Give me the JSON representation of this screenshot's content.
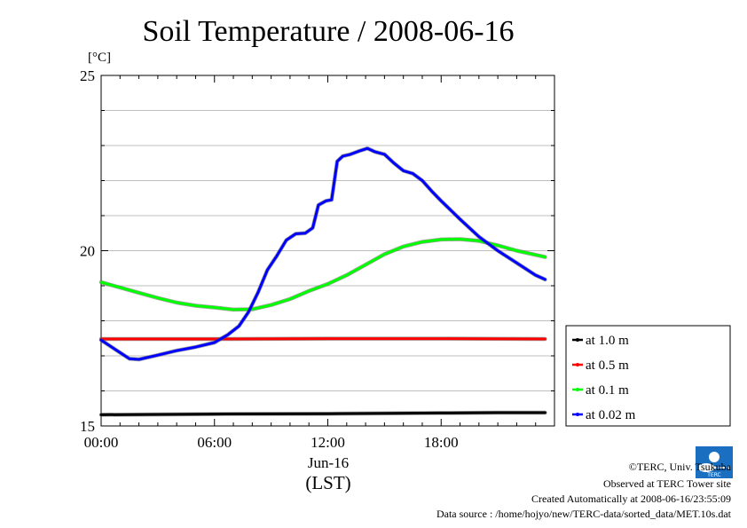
{
  "chart_data": {
    "type": "line",
    "title": "Soil Temperature / 2008-06-16",
    "ylabel": "[°C]",
    "xlabel": "(LST)",
    "date_label": "Jun-16",
    "x_ticks": [
      "00:00",
      "06:00",
      "12:00",
      "18:00"
    ],
    "y_ticks": [
      "15",
      "20",
      "25"
    ],
    "xlim": [
      0,
      24
    ],
    "ylim": [
      15,
      25
    ],
    "grid": true,
    "legend_position": "right-bottom",
    "series": [
      {
        "name": "at 1.0 m",
        "color": "#000000",
        "x": [
          0,
          6,
          12,
          18,
          21,
          23.5
        ],
        "y": [
          15.32,
          15.34,
          15.35,
          15.37,
          15.38,
          15.38
        ]
      },
      {
        "name": "at 0.5 m",
        "color": "#ff0000",
        "x": [
          0,
          6,
          12,
          18,
          23.5
        ],
        "y": [
          17.48,
          17.48,
          17.49,
          17.49,
          17.48
        ]
      },
      {
        "name": "at 0.1 m",
        "color": "#00ff00",
        "x": [
          0,
          1,
          2,
          3,
          4,
          5,
          6,
          7,
          8,
          9,
          10,
          11,
          12,
          13,
          14,
          15,
          16,
          17,
          18,
          19,
          20,
          21,
          22,
          23,
          23.5
        ],
        "y": [
          19.1,
          18.95,
          18.8,
          18.65,
          18.52,
          18.43,
          18.38,
          18.32,
          18.33,
          18.45,
          18.62,
          18.85,
          19.05,
          19.3,
          19.6,
          19.9,
          20.12,
          20.25,
          20.32,
          20.33,
          20.28,
          20.15,
          20.0,
          19.88,
          19.82
        ]
      },
      {
        "name": "at 0.02 m",
        "color": "#0000ff",
        "x": [
          0,
          0.7,
          1.5,
          2,
          3,
          4,
          5,
          6,
          6.7,
          7.3,
          7.8,
          8.3,
          8.8,
          9.3,
          9.8,
          10.3,
          10.8,
          11.2,
          11.5,
          11.9,
          12.2,
          12.5,
          12.8,
          13.2,
          13.7,
          14.1,
          14.5,
          15,
          15.5,
          16,
          16.5,
          17,
          17.5,
          18,
          19,
          20,
          21,
          22,
          23,
          23.5
        ],
        "y": [
          17.45,
          17.2,
          16.92,
          16.9,
          17.02,
          17.15,
          17.25,
          17.38,
          17.6,
          17.85,
          18.25,
          18.8,
          19.45,
          19.85,
          20.3,
          20.48,
          20.5,
          20.65,
          21.3,
          21.42,
          21.45,
          22.55,
          22.7,
          22.75,
          22.85,
          22.92,
          22.82,
          22.75,
          22.5,
          22.28,
          22.2,
          22.0,
          21.7,
          21.42,
          20.9,
          20.4,
          20.0,
          19.65,
          19.3,
          19.18
        ]
      }
    ]
  },
  "credits": {
    "copyright": "©TERC, Univ. Tsukuba",
    "observed": "Observed at TERC Tower site",
    "created": "Created Automatically at 2008-06-16/23:55:09",
    "source": "Data source : /home/hojyo/new/TERC-data/sorted_data/MET.10s.dat"
  }
}
